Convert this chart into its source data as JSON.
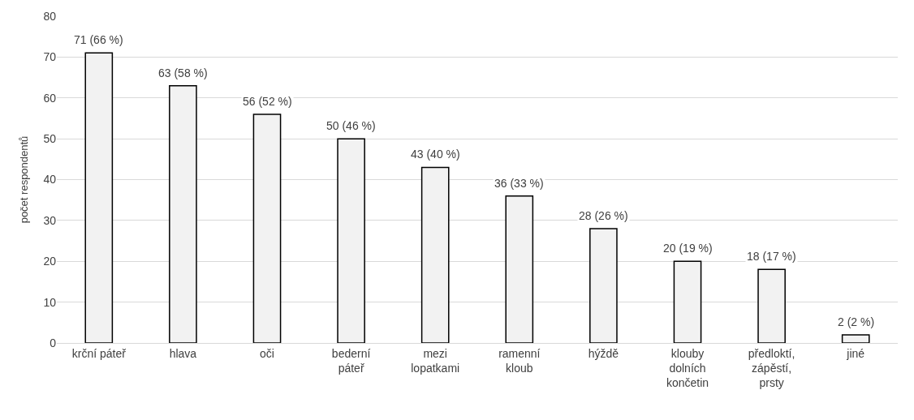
{
  "chart_data": {
    "type": "bar",
    "ylabel": "počet respondentů",
    "categories": [
      "krční páteř",
      "hlava",
      "oči",
      "bederní páteř",
      "mezi lopatkami",
      "ramenní kloub",
      "hýždě",
      "klouby dolních končetin",
      "předloktí, zápěstí, prsty",
      "jiné"
    ],
    "values": [
      71,
      63,
      56,
      50,
      43,
      36,
      28,
      20,
      18,
      2
    ],
    "value_labels": [
      "71 (66 %)",
      "63 (58 %)",
      "56 (52 %)",
      "50 (46 %)",
      "43 (40 %)",
      "36 (33 %)",
      "28 (26 %)",
      "20 (19 %)",
      "18 (17 %)",
      "2 (2 %)"
    ],
    "color": "#f2f2f2",
    "ylim": [
      0,
      80
    ],
    "yticks": [
      0,
      10,
      20,
      30,
      40,
      50,
      60,
      70,
      80
    ],
    "grid": "y",
    "legend": false
  }
}
